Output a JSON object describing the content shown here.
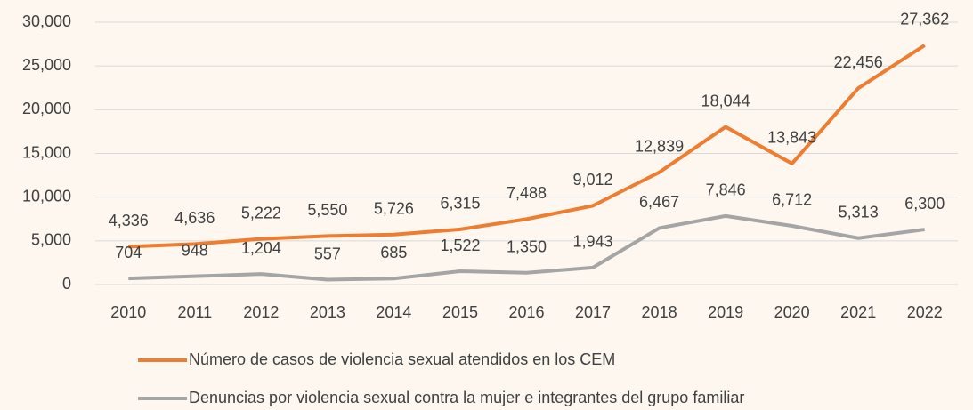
{
  "chart_data": {
    "type": "line",
    "categories": [
      "2010",
      "2011",
      "2012",
      "2013",
      "2014",
      "2015",
      "2016",
      "2017",
      "2018",
      "2019",
      "2020",
      "2021",
      "2022"
    ],
    "series": [
      {
        "name": "Número de casos de violencia sexual atendidos en los CEM",
        "color": "#ed7d31",
        "values": [
          4336,
          4636,
          5222,
          5550,
          5726,
          6315,
          7488,
          9012,
          12839,
          18044,
          13843,
          22456,
          27362
        ],
        "value_labels": [
          "4,336",
          "4,636",
          "5,222",
          "5,550",
          "5,726",
          "6,315",
          "7,488",
          "9,012",
          "12,839",
          "18,044",
          "13,843",
          "22,456",
          "27,362"
        ]
      },
      {
        "name": "Denuncias por violencia sexual contra la mujer e integrantes del grupo familiar",
        "color": "#a5a5a5",
        "values": [
          704,
          948,
          1204,
          557,
          685,
          1522,
          1350,
          1943,
          6467,
          7846,
          6712,
          5313,
          6300
        ],
        "value_labels": [
          "704",
          "948",
          "1,204",
          "557",
          "685",
          "1,522",
          "1,350",
          "1,943",
          "6,467",
          "7,846",
          "6,712",
          "5,313",
          "6,300"
        ]
      }
    ],
    "ylim": [
      0,
      30000
    ],
    "yticks": [
      0,
      {
        "value": 5000,
        "label": "5,000"
      },
      {
        "value": 10000,
        "label": "10,000"
      },
      {
        "value": 15000,
        "label": "15,000"
      },
      {
        "value": 20000,
        "label": "20,000"
      },
      {
        "value": 25000,
        "label": "25,000"
      },
      {
        "value": 30000,
        "label": "30,000"
      }
    ],
    "grid": true,
    "legend": "bottom"
  }
}
